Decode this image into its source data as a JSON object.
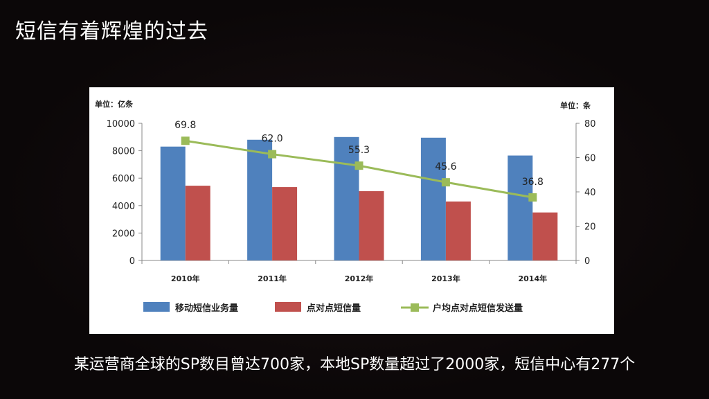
{
  "page": {
    "title": "短信有着辉煌的过去",
    "caption": "某运营商全球的SP数目曾达700家，本地SP数量超过了2000家，短信中心有277个"
  },
  "chart_data": {
    "type": "bar",
    "categories": [
      "2010年",
      "2011年",
      "2012年",
      "2013年",
      "2014年"
    ],
    "left_unit_label": "单位：亿条",
    "right_unit_label": "单位：条",
    "ylim_left": [
      0,
      10000
    ],
    "yticks_left": [
      0,
      2000,
      4000,
      6000,
      8000,
      10000
    ],
    "ylim_right": [
      0,
      80
    ],
    "yticks_right": [
      0,
      20,
      40,
      60,
      80
    ],
    "series": [
      {
        "name": "移动短信业务量",
        "kind": "bar",
        "axis": "left",
        "color": "#4f81bd",
        "values": [
          8300,
          8800,
          9000,
          8950,
          7650
        ]
      },
      {
        "name": "点对点短信量",
        "kind": "bar",
        "axis": "left",
        "color": "#c0504d",
        "values": [
          5450,
          5350,
          5050,
          4300,
          3500
        ]
      },
      {
        "name": "户均点对点短信发送量",
        "kind": "line",
        "axis": "right",
        "color": "#9bbb59",
        "values": [
          69.8,
          62.0,
          55.3,
          45.6,
          36.8
        ],
        "labels": [
          "69.8",
          "62.0",
          "55.3",
          "45.6",
          "36.8"
        ]
      }
    ]
  }
}
